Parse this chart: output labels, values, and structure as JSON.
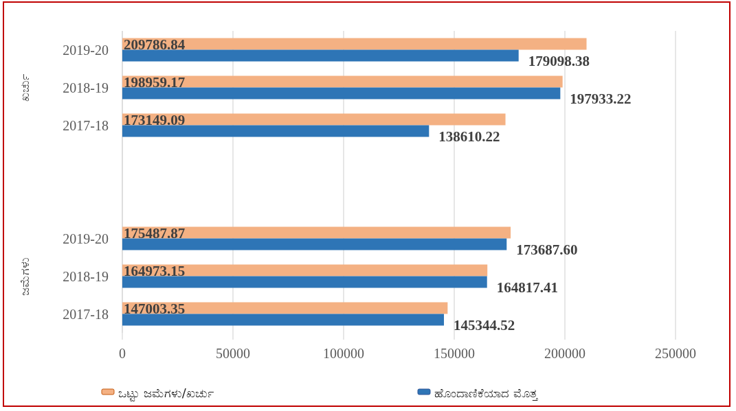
{
  "chart_data": {
    "type": "bar",
    "orientation": "horizontal",
    "categories": [
      "2019-20",
      "2018-19",
      "2017-18",
      null,
      null,
      "2019-20",
      "2018-19",
      "2017-18"
    ],
    "series": [
      {
        "name": "ಒಟ್ಟು ಜಮೆಗಳು/ಖರ್ಚು",
        "color": "#f4b183",
        "values": [
          209786.84,
          198959.17,
          173149.09,
          null,
          null,
          175487.87,
          164973.15,
          147003.35
        ],
        "value_labels": [
          "209786.84",
          "198959.17",
          "173149.09",
          null,
          null,
          "175487.87",
          "164973.15",
          "147003.35"
        ]
      },
      {
        "name": "ಹೊಂದಾಣಿಕೆಯಾದ ಮೊತ್ತ",
        "color": "#2e75b6",
        "values": [
          179098.38,
          197933.22,
          138610.22,
          null,
          null,
          173687.6,
          164817.41,
          145344.52
        ],
        "value_labels": [
          "179098.38",
          "197933.22",
          "138610.22",
          null,
          null,
          "173687.60",
          "164817.41",
          "145344.52"
        ]
      }
    ],
    "annotations": [
      "ಖರ್ಚು",
      "ಜಮೆಗಳು"
    ],
    "xlim": [
      0,
      250000
    ],
    "xticks": [
      0,
      50000,
      100000,
      150000,
      200000,
      250000
    ],
    "grid": "x",
    "legend": "bottom"
  }
}
